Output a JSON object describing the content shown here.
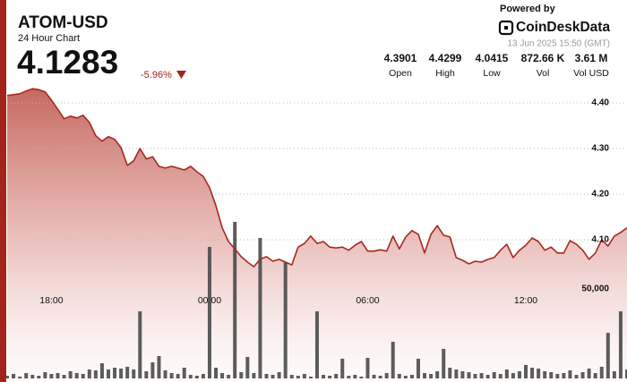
{
  "header": {
    "symbol": "ATOM-USD",
    "subtitle": "24 Hour Chart",
    "price": "4.1283",
    "change": "-5.96%",
    "powered_by": "Powered by",
    "brand": "CoinDeskData",
    "timestamp": "13 Jun 2025 15:50 (GMT)"
  },
  "stats": [
    {
      "value": "4.3901",
      "label": "Open"
    },
    {
      "value": "4.4299",
      "label": "High"
    },
    {
      "value": "4.0415",
      "label": "Low"
    },
    {
      "value": "872.66 K",
      "label": "Vol"
    },
    {
      "value": "3.61 M",
      "label": "Vol USD"
    }
  ],
  "chart_data": [
    {
      "type": "line",
      "color": "#a8281f",
      "grid": true,
      "values": [
        4.416,
        4.418,
        4.42,
        4.426,
        4.431,
        4.429,
        4.424,
        4.406,
        4.386,
        4.365,
        4.371,
        4.367,
        4.373,
        4.357,
        4.328,
        4.316,
        4.326,
        4.32,
        4.302,
        4.263,
        4.273,
        4.3,
        4.277,
        4.282,
        4.261,
        4.257,
        4.261,
        4.257,
        4.253,
        4.261,
        4.249,
        4.239,
        4.214,
        4.175,
        4.126,
        4.096,
        4.08,
        4.063,
        4.051,
        4.041,
        4.057,
        4.063,
        4.053,
        4.057,
        4.051,
        4.045,
        4.084,
        4.092,
        4.108,
        4.092,
        4.096,
        4.084,
        4.082,
        4.084,
        4.077,
        4.088,
        4.096,
        4.075,
        4.075,
        4.078,
        4.075,
        4.108,
        4.08,
        4.106,
        4.12,
        4.112,
        4.071,
        4.112,
        4.131,
        4.11,
        4.106,
        4.061,
        4.055,
        4.047,
        4.053,
        4.051,
        4.057,
        4.061,
        4.077,
        4.09,
        4.061,
        4.077,
        4.088,
        4.104,
        4.096,
        4.077,
        4.084,
        4.071,
        4.071,
        4.098,
        4.09,
        4.077,
        4.057,
        4.071,
        4.1,
        4.086,
        4.108,
        4.116,
        4.126
      ],
      "xlim": [
        0,
        98
      ],
      "xticks": [
        {
          "value": 7,
          "label": "18:00"
        },
        {
          "value": 32,
          "label": "00:00"
        },
        {
          "value": 57,
          "label": "06:00"
        },
        {
          "value": 82,
          "label": "12:00"
        }
      ],
      "ylim": [
        3.8,
        4.45
      ],
      "yticks": [
        {
          "value": 4.1,
          "label": "4.10"
        },
        {
          "value": 4.2,
          "label": "4.20"
        },
        {
          "value": 4.3,
          "label": "4.30"
        },
        {
          "value": 4.4,
          "label": "4.40"
        }
      ]
    },
    {
      "type": "bar",
      "color": "#4a4a4a",
      "values": [
        1500,
        2500,
        1000,
        3000,
        2000,
        1500,
        3500,
        2500,
        3000,
        2000,
        4000,
        3000,
        2500,
        5000,
        4500,
        8500,
        5000,
        6000,
        5500,
        6500,
        5000,
        37500,
        4000,
        9000,
        12500,
        4500,
        3000,
        2500,
        6000,
        2000,
        1500,
        2500,
        73500,
        6000,
        3000,
        2000,
        87500,
        3500,
        12000,
        3000,
        78500,
        2500,
        2000,
        3500,
        65000,
        2000,
        1500,
        2500,
        1000,
        37500,
        2000,
        1500,
        2500,
        11000,
        1500,
        2000,
        1000,
        11500,
        2000,
        1500,
        3000,
        20500,
        2500,
        1500,
        2000,
        11000,
        3000,
        2500,
        4000,
        16500,
        6000,
        5000,
        4000,
        3500,
        2500,
        3000,
        2000,
        3500,
        2500,
        5000,
        3000,
        4000,
        7500,
        6000,
        5500,
        4000,
        3500,
        2500,
        3000,
        4500,
        2000,
        3500,
        5500,
        3000,
        6500,
        25500,
        4000,
        37500,
        5000
      ],
      "ylim": [
        0,
        100000
      ],
      "yticks": [
        {
          "value": 50000,
          "label": "50,000"
        }
      ]
    }
  ]
}
